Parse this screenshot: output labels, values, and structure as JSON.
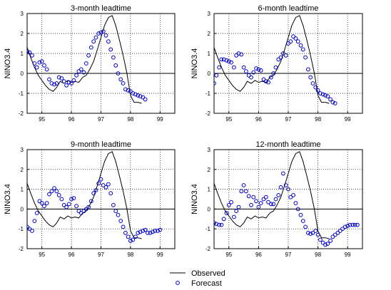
{
  "legend": {
    "observed_label": "Observed",
    "forecast_label": "Forecast"
  },
  "chart_data": [
    {
      "type": "line",
      "title": "3-month leadtime",
      "xlabel": "",
      "ylabel": "NINO3.4",
      "xlim": [
        94.5,
        99.5
      ],
      "ylim": [
        -2,
        3
      ],
      "xticks": [
        95,
        96,
        97,
        98,
        99
      ],
      "yticks": [
        -2,
        -1,
        0,
        1,
        2,
        3
      ],
      "grid": true,
      "series": [
        {
          "name": "Observed",
          "style": "line",
          "color": "#000000",
          "x": [
            94.5,
            94.62,
            94.75,
            94.88,
            95.0,
            95.12,
            95.25,
            95.38,
            95.5,
            95.62,
            95.75,
            95.88,
            96.0,
            96.12,
            96.25,
            96.38,
            96.5,
            96.62,
            96.75,
            96.88,
            97.0,
            97.12,
            97.25,
            97.38,
            97.5,
            97.62,
            97.75,
            97.88,
            98.0,
            98.12,
            98.25,
            98.38
          ],
          "y": [
            1.3,
            0.8,
            0.3,
            -0.1,
            -0.35,
            -0.6,
            -0.8,
            -0.9,
            -0.7,
            -0.4,
            -0.5,
            -0.35,
            -0.45,
            -0.4,
            -0.45,
            -0.2,
            -0.1,
            0.2,
            0.6,
            1.2,
            1.8,
            2.4,
            2.8,
            2.9,
            2.4,
            1.7,
            0.9,
            0.0,
            -1.1,
            -1.45,
            -1.45,
            -1.5
          ]
        },
        {
          "name": "Forecast",
          "style": "markers",
          "color": "#0000cc",
          "x": [
            94.5,
            94.58,
            94.67,
            94.75,
            94.83,
            94.92,
            95.0,
            95.08,
            95.17,
            95.25,
            95.33,
            95.42,
            95.5,
            95.58,
            95.67,
            95.75,
            95.83,
            95.92,
            96.0,
            96.08,
            96.17,
            96.25,
            96.33,
            96.42,
            96.5,
            96.58,
            96.67,
            96.75,
            96.83,
            96.92,
            97.0,
            97.08,
            97.17,
            97.25,
            97.33,
            97.42,
            97.5,
            97.58,
            97.67,
            97.75,
            97.83,
            97.92,
            98.0,
            98.08,
            98.17,
            98.25,
            98.33,
            98.42,
            98.5
          ],
          "y": [
            1.1,
            1.05,
            0.9,
            0.5,
            0.3,
            0.55,
            0.6,
            0.4,
            0.2,
            -0.3,
            -0.5,
            -0.55,
            -0.5,
            -0.2,
            -0.25,
            -0.4,
            -0.6,
            -0.45,
            -0.5,
            -0.35,
            -0.1,
            0.1,
            0.2,
            0.05,
            0.5,
            0.9,
            1.3,
            1.6,
            1.8,
            2.0,
            2.05,
            2.1,
            1.9,
            1.6,
            1.2,
            0.8,
            0.4,
            0.0,
            -0.3,
            -0.5,
            -0.8,
            -0.85,
            -0.9,
            -1.0,
            -1.05,
            -1.1,
            -1.15,
            -1.2,
            -1.3
          ]
        }
      ]
    },
    {
      "type": "line",
      "title": "6-month leadtime",
      "xlabel": "",
      "ylabel": "NINO3.4",
      "xlim": [
        94.5,
        99.5
      ],
      "ylim": [
        -2,
        3
      ],
      "xticks": [
        95,
        96,
        97,
        98,
        99
      ],
      "yticks": [
        -2,
        -1,
        0,
        1,
        2,
        3
      ],
      "grid": true,
      "series": [
        {
          "name": "Observed",
          "style": "line",
          "color": "#000000",
          "x": [
            94.5,
            94.62,
            94.75,
            94.88,
            95.0,
            95.12,
            95.25,
            95.38,
            95.5,
            95.62,
            95.75,
            95.88,
            96.0,
            96.12,
            96.25,
            96.38,
            96.5,
            96.62,
            96.75,
            96.88,
            97.0,
            97.12,
            97.25,
            97.38,
            97.5,
            97.62,
            97.75,
            97.88,
            98.0,
            98.12,
            98.25,
            98.38
          ],
          "y": [
            1.3,
            0.8,
            0.3,
            -0.1,
            -0.35,
            -0.6,
            -0.8,
            -0.9,
            -0.7,
            -0.4,
            -0.5,
            -0.35,
            -0.45,
            -0.4,
            -0.45,
            -0.2,
            -0.1,
            0.2,
            0.6,
            1.2,
            1.8,
            2.4,
            2.8,
            2.9,
            2.4,
            1.7,
            0.9,
            0.0,
            -1.1,
            -1.45,
            -1.45,
            -1.5
          ]
        },
        {
          "name": "Forecast",
          "style": "markers",
          "color": "#0000cc",
          "x": [
            94.5,
            94.58,
            94.67,
            94.75,
            94.83,
            94.92,
            95.0,
            95.08,
            95.17,
            95.25,
            95.33,
            95.42,
            95.5,
            95.58,
            95.67,
            95.75,
            95.83,
            95.92,
            96.0,
            96.08,
            96.17,
            96.25,
            96.33,
            96.42,
            96.5,
            96.58,
            96.67,
            96.75,
            96.83,
            96.92,
            97.0,
            97.08,
            97.17,
            97.25,
            97.33,
            97.42,
            97.5,
            97.58,
            97.67,
            97.75,
            97.83,
            97.92,
            98.0,
            98.08,
            98.17,
            98.25,
            98.33,
            98.42,
            98.5,
            98.58
          ],
          "y": [
            -0.5,
            -0.1,
            0.3,
            0.7,
            0.7,
            0.65,
            0.6,
            0.55,
            0.3,
            0.9,
            1.0,
            0.95,
            0.3,
            0.1,
            -0.1,
            -0.2,
            0.05,
            0.25,
            0.2,
            0.15,
            -0.3,
            -0.4,
            -0.45,
            -0.2,
            0.0,
            0.3,
            0.7,
            0.8,
            1.0,
            0.9,
            1.5,
            1.6,
            1.85,
            1.75,
            1.6,
            1.4,
            1.2,
            0.8,
            0.2,
            -0.2,
            -0.5,
            -0.7,
            -0.85,
            -1.0,
            -1.05,
            -1.1,
            -1.15,
            -1.3,
            -1.45,
            -1.5
          ]
        }
      ]
    },
    {
      "type": "line",
      "title": "9-month leadtime",
      "xlabel": "",
      "ylabel": "NINO3.4",
      "xlim": [
        94.5,
        99.5
      ],
      "ylim": [
        -2,
        3
      ],
      "xticks": [
        95,
        96,
        97,
        98,
        99
      ],
      "yticks": [
        -2,
        -1,
        0,
        1,
        2,
        3
      ],
      "grid": true,
      "series": [
        {
          "name": "Observed",
          "style": "line",
          "color": "#000000",
          "x": [
            94.5,
            94.62,
            94.75,
            94.88,
            95.0,
            95.12,
            95.25,
            95.38,
            95.5,
            95.62,
            95.75,
            95.88,
            96.0,
            96.12,
            96.25,
            96.38,
            96.5,
            96.62,
            96.75,
            96.88,
            97.0,
            97.12,
            97.25,
            97.38,
            97.5,
            97.62,
            97.75,
            97.88,
            98.0,
            98.12,
            98.25,
            98.38
          ],
          "y": [
            1.3,
            0.8,
            0.3,
            -0.1,
            -0.35,
            -0.6,
            -0.8,
            -0.9,
            -0.7,
            -0.4,
            -0.5,
            -0.35,
            -0.45,
            -0.4,
            -0.45,
            -0.2,
            -0.1,
            0.2,
            0.6,
            1.2,
            1.8,
            2.4,
            2.8,
            2.9,
            2.4,
            1.7,
            0.9,
            0.0,
            -1.1,
            -1.45,
            -1.45,
            -1.5
          ]
        },
        {
          "name": "Forecast",
          "style": "markers",
          "color": "#0000cc",
          "x": [
            94.5,
            94.58,
            94.67,
            94.75,
            94.83,
            94.92,
            95.0,
            95.08,
            95.17,
            95.25,
            95.33,
            95.42,
            95.5,
            95.58,
            95.67,
            95.75,
            95.83,
            95.92,
            96.0,
            96.08,
            96.17,
            96.25,
            96.33,
            96.42,
            96.5,
            96.58,
            96.67,
            96.75,
            96.83,
            96.92,
            97.0,
            97.08,
            97.17,
            97.25,
            97.33,
            97.42,
            97.5,
            97.58,
            97.67,
            97.75,
            97.83,
            97.92,
            98.0,
            98.08,
            98.17,
            98.25,
            98.33,
            98.42,
            98.5,
            98.58,
            98.67,
            98.75,
            98.83,
            98.92,
            99.0
          ],
          "y": [
            -0.9,
            -1.0,
            -1.1,
            -0.6,
            -0.2,
            0.4,
            0.3,
            0.15,
            0.3,
            0.75,
            0.9,
            1.05,
            0.9,
            0.7,
            0.5,
            0.2,
            0.1,
            0.25,
            0.5,
            0.55,
            0.15,
            -0.1,
            -0.2,
            -0.1,
            0.0,
            0.1,
            0.4,
            0.8,
            0.95,
            1.3,
            1.5,
            1.2,
            1.1,
            1.25,
            0.8,
            0.2,
            -0.1,
            -0.3,
            -0.6,
            -0.9,
            -1.2,
            -1.4,
            -1.6,
            -1.55,
            -1.4,
            -1.2,
            -1.15,
            -1.1,
            -1.05,
            -1.2,
            -1.2,
            -1.15,
            -1.1,
            -1.1,
            -1.05
          ]
        }
      ]
    },
    {
      "type": "line",
      "title": "12-month leadtime",
      "xlabel": "",
      "ylabel": "NINO3.4",
      "xlim": [
        94.5,
        99.5
      ],
      "ylim": [
        -2,
        3
      ],
      "xticks": [
        95,
        96,
        97,
        98,
        99
      ],
      "yticks": [
        -2,
        -1,
        0,
        1,
        2,
        3
      ],
      "grid": true,
      "series": [
        {
          "name": "Observed",
          "style": "line",
          "color": "#000000",
          "x": [
            94.5,
            94.62,
            94.75,
            94.88,
            95.0,
            95.12,
            95.25,
            95.38,
            95.5,
            95.62,
            95.75,
            95.88,
            96.0,
            96.12,
            96.25,
            96.38,
            96.5,
            96.62,
            96.75,
            96.88,
            97.0,
            97.12,
            97.25,
            97.38,
            97.5,
            97.62,
            97.75,
            97.88,
            98.0,
            98.12,
            98.25,
            98.38
          ],
          "y": [
            1.3,
            0.8,
            0.3,
            -0.1,
            -0.35,
            -0.6,
            -0.8,
            -0.9,
            -0.7,
            -0.4,
            -0.5,
            -0.35,
            -0.45,
            -0.4,
            -0.45,
            -0.2,
            -0.1,
            0.2,
            0.6,
            1.2,
            1.8,
            2.4,
            2.8,
            2.9,
            2.4,
            1.7,
            0.9,
            0.0,
            -1.1,
            -1.45,
            -1.45,
            -1.5
          ]
        },
        {
          "name": "Forecast",
          "style": "markers",
          "color": "#0000cc",
          "x": [
            94.5,
            94.58,
            94.67,
            94.75,
            94.83,
            94.92,
            95.0,
            95.08,
            95.17,
            95.25,
            95.33,
            95.42,
            95.5,
            95.58,
            95.67,
            95.75,
            95.83,
            95.92,
            96.0,
            96.08,
            96.17,
            96.25,
            96.33,
            96.42,
            96.5,
            96.58,
            96.67,
            96.75,
            96.83,
            96.92,
            97.0,
            97.08,
            97.17,
            97.25,
            97.33,
            97.42,
            97.5,
            97.58,
            97.67,
            97.75,
            97.83,
            97.92,
            98.0,
            98.08,
            98.17,
            98.25,
            98.33,
            98.42,
            98.5,
            98.58,
            98.67,
            98.75,
            98.83,
            98.92,
            99.0,
            99.08,
            99.17,
            99.25,
            99.33
          ],
          "y": [
            -0.7,
            -0.75,
            -0.8,
            -0.8,
            -0.5,
            -0.2,
            0.2,
            0.35,
            -0.4,
            -0.1,
            0.1,
            0.9,
            1.2,
            0.9,
            0.65,
            0.2,
            0.6,
            0.4,
            0.1,
            0.3,
            0.5,
            0.6,
            0.35,
            0.25,
            0.25,
            0.5,
            0.7,
            1.1,
            1.8,
            1.2,
            1.0,
            0.6,
            0.7,
            0.3,
            0.0,
            -0.3,
            -0.6,
            -0.9,
            -1.2,
            -1.25,
            -1.2,
            -1.1,
            -1.3,
            -1.55,
            -1.7,
            -1.8,
            -1.75,
            -1.6,
            -1.4,
            -1.3,
            -1.2,
            -1.1,
            -1.0,
            -0.9,
            -0.85,
            -0.8,
            -0.8,
            -0.8,
            -0.8
          ]
        }
      ]
    }
  ]
}
